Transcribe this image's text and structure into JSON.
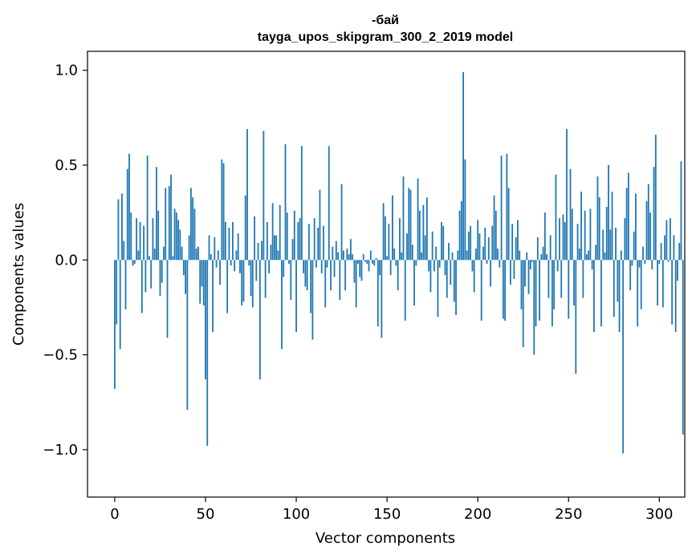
{
  "chart_data": {
    "type": "bar",
    "title_line1": "-бай",
    "title_line2": "tayga_upos_skipgram_300_2_2019 model",
    "xlabel": "Vector components",
    "ylabel": "Components values",
    "xlim": [
      -15,
      314
    ],
    "ylim": [
      -1.25,
      1.1
    ],
    "xticks": [
      0,
      50,
      100,
      150,
      200,
      250,
      300
    ],
    "xtick_labels": [
      "0",
      "50",
      "100",
      "150",
      "200",
      "250",
      "300"
    ],
    "yticks": [
      -1.0,
      -0.5,
      0.0,
      0.5,
      1.0
    ],
    "ytick_labels": [
      "−1.0",
      "−0.5",
      "0.0",
      "0.5",
      "1.0"
    ],
    "bar_color": "#1f77b4",
    "values": [
      -0.68,
      -0.34,
      0.32,
      -0.47,
      0.35,
      0.1,
      -0.26,
      0.48,
      0.56,
      0.25,
      -0.03,
      -0.02,
      0.22,
      0.05,
      0.2,
      -0.28,
      0.18,
      -0.17,
      0.55,
      0.02,
      -0.15,
      0.22,
      0.06,
      0.49,
      0.26,
      -0.19,
      -0.12,
      0.07,
      0.38,
      -0.41,
      0.39,
      0.45,
      0.02,
      0.27,
      0.25,
      0.21,
      0.16,
      0.07,
      -0.08,
      -0.18,
      -0.79,
      0.13,
      0.38,
      0.33,
      0.27,
      0.06,
      0.07,
      -0.23,
      -0.14,
      -0.24,
      -0.63,
      -0.98,
      0.13,
      0.03,
      -0.38,
      0.12,
      -0.04,
      0.05,
      -0.13,
      0.53,
      0.51,
      0.2,
      -0.28,
      0.17,
      -0.03,
      0.2,
      -0.06,
      0.05,
      0.14,
      -0.07,
      -0.24,
      -0.22,
      0.34,
      0.69,
      -0.03,
      -0.19,
      -0.25,
      0.23,
      -0.11,
      0.09,
      -0.63,
      0.1,
      0.68,
      -0.2,
      0.2,
      -0.07,
      0.08,
      0.3,
      0.13,
      0.13,
      0.05,
      0.29,
      -0.47,
      -0.09,
      0.61,
      0.25,
      -0.02,
      -0.21,
      0.11,
      0.26,
      -0.38,
      0.2,
      0.22,
      0.6,
      -0.07,
      -0.14,
      -0.16,
      0.19,
      -0.28,
      -0.42,
      0.22,
      -0.04,
      0.17,
      0.37,
      -0.07,
      0.18,
      -0.25,
      -0.04,
      0.6,
      -0.16,
      0.07,
      -0.09,
      0.1,
      0.04,
      -0.21,
      0.4,
      0.05,
      -0.16,
      0.06,
      0.03,
      0.11,
      0.03,
      -0.12,
      -0.25,
      -0.02,
      -0.09,
      -0.11,
      0.03,
      -0.01,
      -0.02,
      -0.06,
      0.05,
      -0.02,
      -0.03,
      0.01,
      -0.35,
      -0.08,
      -0.41,
      0.3,
      0.23,
      0.02,
      0.19,
      -0.08,
      0.34,
      0.06,
      -0.03,
      -0.16,
      0.22,
      0.04,
      0.44,
      -0.32,
      0.14,
      0.38,
      0.37,
      0.08,
      -0.24,
      -0.03,
      0.43,
      0.26,
      0.04,
      0.29,
      0.13,
      0.33,
      -0.06,
      -0.17,
      0.15,
      -0.06,
      0.07,
      -0.3,
      -0.04,
      0.2,
      0.18,
      -0.08,
      -0.2,
      0.09,
      -0.13,
      0.04,
      -0.22,
      -0.29,
      0.05,
      0.26,
      0.31,
      0.99,
      0.53,
      0.05,
      0.15,
      0.18,
      -0.06,
      -0.17,
      0.06,
      0.21,
      0.14,
      -0.32,
      0.07,
      0.17,
      -0.02,
      0.12,
      -0.14,
      0.18,
      0.34,
      0.26,
      0.06,
      -0.04,
      0.55,
      -0.31,
      -0.32,
      0.56,
      0.38,
      -0.13,
      0.19,
      -0.1,
      0.12,
      0.21,
      0.05,
      -0.26,
      -0.46,
      -0.14,
      0.04,
      -0.18,
      -0.05,
      -0.01,
      -0.5,
      -0.35,
      0.12,
      -0.32,
      0.03,
      0.07,
      0.25,
      0.03,
      -0.2,
      0.13,
      -0.35,
      -0.26,
      0.45,
      -0.06,
      0.22,
      -0.2,
      0.24,
      0.2,
      0.69,
      -0.31,
      0.48,
      0.27,
      -0.24,
      -0.6,
      0.19,
      0.06,
      0.36,
      -0.2,
      0.26,
      0.03,
      0.05,
      0.27,
      -0.05,
      -0.38,
      0.08,
      0.44,
      0.33,
      -0.35,
      0.16,
      0.04,
      0.28,
      0.5,
      0.16,
      0.36,
      -0.3,
      0.17,
      -0.22,
      -0.38,
      0.05,
      -1.02,
      0.22,
      0.38,
      0.46,
      -0.16,
      -0.03,
      0.15,
      0.35,
      -0.35,
      -0.04,
      -0.26,
      0.07,
      -0.02,
      0.31,
      0.4,
      0.25,
      -0.05,
      0.49,
      0.66,
      -0.24,
      -0.02,
      0.09,
      -0.25,
      0.13,
      0.21,
      -0.01,
      0.22,
      -0.34,
      0.13,
      -0.38,
      -0.11,
      0.09,
      0.52,
      -0.92
    ]
  }
}
